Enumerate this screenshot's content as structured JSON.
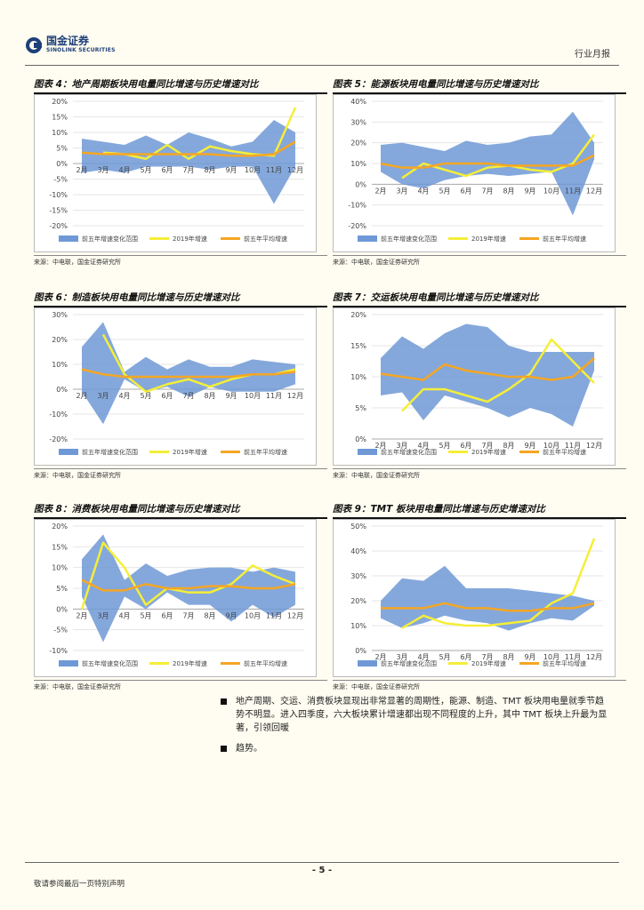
{
  "header": {
    "logo_cn": "国金证券",
    "logo_en": "SINOLINK SECURITIES",
    "report_type": "行业月报"
  },
  "legend_labels": {
    "range": "前五年增速变化范围",
    "current": "2019年增速",
    "average": "前五年平均增速"
  },
  "colors": {
    "range": "#6f99d6",
    "current": "#f5ee38",
    "average": "#f5a623"
  },
  "figures": [
    {
      "title": "图表 4：地产周期板块用电量同比增速与历史增速对比",
      "source": "来源：中电联，国金证券研究所",
      "chart_data": {
        "type": "area",
        "x": [
          "2月",
          "3月",
          "4月",
          "5月",
          "6月",
          "7月",
          "8月",
          "9月",
          "10月",
          "11月",
          "12月"
        ],
        "ylim": [
          -20,
          20
        ],
        "yticks": [
          -20,
          -15,
          -10,
          -5,
          0,
          5,
          10,
          15,
          20
        ],
        "range_upper": [
          8,
          7,
          6,
          9,
          6,
          10,
          8,
          5.5,
          7,
          14,
          10
        ],
        "range_lower": [
          -3,
          -2,
          -3,
          -1,
          -1,
          -1,
          -2,
          -1,
          -1,
          -13,
          -1
        ],
        "series": [
          {
            "name": "2019年增速",
            "values": [
              null,
              3.5,
              3,
              1.5,
              6,
              1.5,
              5.5,
              4,
              3,
              2.5,
              18
            ]
          },
          {
            "name": "前五年平均增速",
            "values": [
              3.5,
              3,
              3,
              3,
              3,
              3,
              3,
              2.5,
              2.5,
              3,
              7
            ]
          }
        ]
      }
    },
    {
      "title": "图表 5：能源板块用电量同比增速与历史增速对比",
      "source": "来源：中电联，国金证券研究所",
      "chart_data": {
        "type": "area",
        "x": [
          "2月",
          "3月",
          "4月",
          "5月",
          "6月",
          "7月",
          "8月",
          "9月",
          "10月",
          "11月",
          "12月"
        ],
        "ylim": [
          -20,
          40
        ],
        "yticks": [
          -20,
          -10,
          0,
          10,
          20,
          30,
          40
        ],
        "range_upper": [
          19,
          20,
          18,
          16,
          21,
          19,
          20,
          23,
          24,
          35,
          20
        ],
        "range_lower": [
          6,
          0,
          -2,
          2,
          4,
          5,
          4,
          5,
          6,
          -15,
          12
        ],
        "series": [
          {
            "name": "2019年增速",
            "values": [
              null,
              3,
              10,
              7,
              4,
              8,
              9,
              7,
              6,
              10,
              24
            ]
          },
          {
            "name": "前五年平均增速",
            "values": [
              10,
              8,
              8,
              10,
              10,
              10,
              9,
              9,
              9,
              9,
              14
            ]
          }
        ]
      }
    },
    {
      "title": "图表 6：制造板块用电量同比增速与历史增速对比",
      "source": "来源：中电联，国金证券研究所",
      "chart_data": {
        "type": "area",
        "x": [
          "2月",
          "3月",
          "4月",
          "5月",
          "6月",
          "7月",
          "8月",
          "9月",
          "10月",
          "11月",
          "12月"
        ],
        "ylim": [
          -20,
          30
        ],
        "yticks": [
          -20,
          -10,
          0,
          10,
          20,
          30
        ],
        "range_upper": [
          17,
          27,
          7,
          13,
          8,
          12,
          9,
          9,
          12,
          11,
          10
        ],
        "range_lower": [
          -1,
          -14,
          4,
          -1,
          1,
          -3,
          1,
          -1,
          -1,
          -1,
          2
        ],
        "series": [
          {
            "name": "2019年增速",
            "values": [
              null,
              22,
              6,
              -1,
              2,
              4,
              1,
              4,
              6,
              6,
              8
            ]
          },
          {
            "name": "前五年平均增速",
            "values": [
              8,
              6,
              5,
              5,
              5,
              5,
              5,
              5,
              6,
              6,
              7
            ]
          }
        ]
      }
    },
    {
      "title": "图表 7：交运板块用电量同比增速与历史增速对比",
      "source": "来源：中电联，国金证券研究所",
      "chart_data": {
        "type": "area",
        "x": [
          "2月",
          "3月",
          "4月",
          "5月",
          "6月",
          "7月",
          "8月",
          "9月",
          "10月",
          "11月",
          "12月"
        ],
        "ylim": [
          0,
          20
        ],
        "yticks": [
          0,
          5,
          10,
          15,
          20
        ],
        "range_upper": [
          13,
          16.5,
          14.5,
          17,
          18.5,
          18,
          15,
          14,
          14,
          14,
          14
        ],
        "range_lower": [
          7,
          7.5,
          3,
          7,
          6,
          5,
          3.5,
          5,
          4,
          2,
          11
        ],
        "series": [
          {
            "name": "2019年增速",
            "values": [
              null,
              4.5,
              8,
              8,
              7,
              6,
              8,
              10.5,
              16,
              12.5,
              9
            ]
          },
          {
            "name": "前五年平均增速",
            "values": [
              10.5,
              10,
              9.5,
              12,
              11,
              10.5,
              10,
              10,
              9.5,
              10,
              13
            ]
          }
        ]
      }
    },
    {
      "title": "图表 8：消费板块用电量同比增速与历史增速对比",
      "source": "来源：中电联，国金证券研究所",
      "chart_data": {
        "type": "area",
        "x": [
          "2月",
          "3月",
          "4月",
          "5月",
          "6月",
          "7月",
          "8月",
          "9月",
          "10月",
          "11月",
          "12月"
        ],
        "ylim": [
          -10,
          20
        ],
        "yticks": [
          -10,
          -5,
          0,
          5,
          10,
          15,
          20
        ],
        "range_upper": [
          12,
          18,
          7,
          11,
          8,
          9.5,
          10,
          10,
          9,
          10,
          9
        ],
        "range_lower": [
          3,
          -8,
          3,
          0,
          4,
          1,
          1,
          -3,
          1,
          -2,
          1
        ],
        "series": [
          {
            "name": "2019年增速",
            "values": [
              0,
              16,
              10,
              1,
              5,
              4,
              4,
              6,
              10.5,
              8,
              6
            ]
          },
          {
            "name": "前五年平均增速",
            "values": [
              7,
              4.5,
              4.5,
              6,
              5,
              5,
              5.5,
              5.5,
              5,
              5,
              6
            ]
          }
        ]
      }
    },
    {
      "title": "图表 9：TMT 板块用电量同比增速与历史增速对比",
      "source": "来源：中电联，国金证券研究所",
      "chart_data": {
        "type": "area",
        "x": [
          "2月",
          "3月",
          "4月",
          "5月",
          "6月",
          "7月",
          "8月",
          "9月",
          "10月",
          "11月",
          "12月"
        ],
        "ylim": [
          0,
          50
        ],
        "yticks": [
          0,
          10,
          20,
          30,
          40,
          50
        ],
        "range_upper": [
          20,
          29,
          28,
          34,
          25,
          25,
          25,
          24,
          23,
          22,
          20
        ],
        "range_lower": [
          13,
          9,
          11,
          14,
          12,
          11,
          8,
          11,
          13,
          12,
          18
        ],
        "series": [
          {
            "name": "2019年增速",
            "values": [
              null,
              9,
              14,
              11,
              10,
              10,
              11,
              12,
              19,
              23,
              45
            ]
          },
          {
            "name": "前五年平均增速",
            "values": [
              17,
              17,
              17,
              19,
              17,
              17,
              16,
              16,
              17,
              17,
              19
            ]
          }
        ]
      }
    }
  ],
  "bullets": [
    "地产周期、交运、消费板块显现出非常显著的周期性，能源、制造、TMT 板块用电量就季节趋势不明显。进入四季度，六大板块累计增速都出现不同程度的上升，其中 TMT 板块上升最为显著，引领回暖",
    "趋势。"
  ],
  "footer": {
    "page": "- 5 -",
    "disclaimer": "敬请参阅最后一页特别声明"
  }
}
